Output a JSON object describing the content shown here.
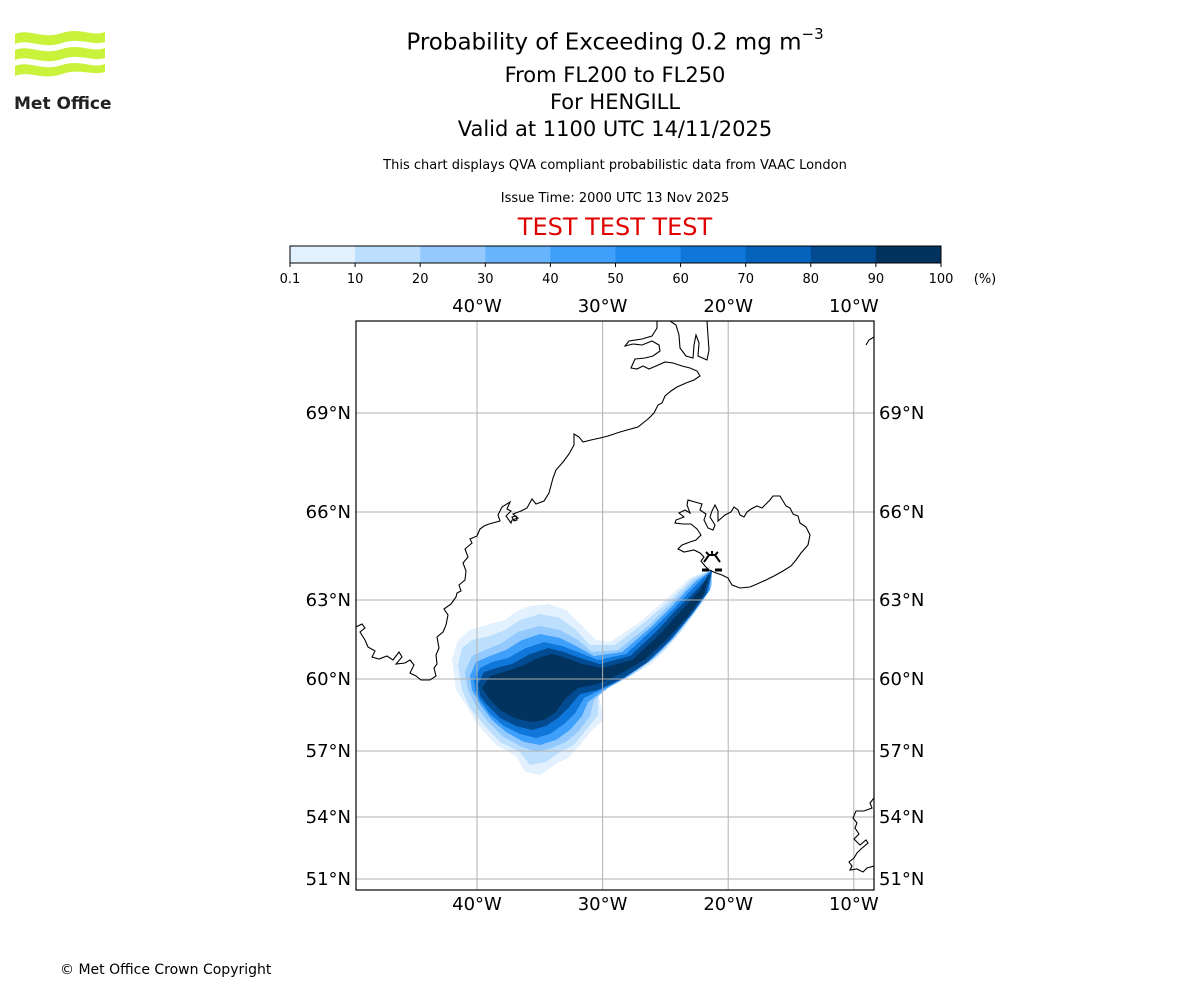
{
  "logo": {
    "text": "Met Office",
    "wave_color": "#c8f33a"
  },
  "header": {
    "title_main": "Probability of Exceeding 0.2 mg m",
    "title_superscript": "−3",
    "level_range": "From FL200 to FL250",
    "volcano_line": "For HENGILL",
    "valid_time": "Valid at 1100 UTC 14/11/2025",
    "subtitle": "This chart displays QVA compliant probabilistic data from VAAC London",
    "issue_time": "Issue Time: 2000 UTC 13 Nov 2025",
    "test_banner": "TEST TEST TEST",
    "test_banner_color": "#e00000"
  },
  "colorbar": {
    "unit_label": "(%)",
    "ticks": [
      "0.1",
      "10",
      "20",
      "30",
      "40",
      "50",
      "60",
      "70",
      "80",
      "90",
      "100"
    ],
    "colors": [
      "#e3f1fe",
      "#bbdffd",
      "#93c9fd",
      "#69b5fd",
      "#3fa0fc",
      "#218cf1",
      "#0f77d9",
      "#0563bc",
      "#034b90",
      "#02335f"
    ]
  },
  "map": {
    "lon_ticks_top": [
      "40°W",
      "30°W",
      "20°W",
      "10°W"
    ],
    "lon_ticks_bottom": [
      "40°W",
      "30°W",
      "20°W",
      "10°W"
    ],
    "lat_ticks_left": [
      "69°N",
      "66°N",
      "63°N",
      "60°N",
      "57°N",
      "54°N",
      "51°N"
    ],
    "lat_ticks_right": [
      "69°N",
      "66°N",
      "63°N",
      "60°N",
      "57°N",
      "54°N",
      "51°N"
    ],
    "volcano_name": "HENGILL",
    "volcano_icon": "volcano-icon"
  },
  "chart_data": {
    "type": "heatmap",
    "title": "Probability of Exceeding 0.2 mg m−3",
    "subtitle": "From FL200 to FL250 — For HENGILL — Valid at 1100 UTC 14/11/2025",
    "variable": "probability of exceeding 0.2 mg/m3 ash concentration",
    "units": "%",
    "colorbar_bounds": [
      0.1,
      10,
      20,
      30,
      40,
      50,
      60,
      70,
      80,
      90,
      100
    ],
    "lon_range": [
      -49.6,
      -8.3
    ],
    "lat_range": [
      50.6,
      71.5
    ],
    "lon_ticks": [
      -40,
      -30,
      -20,
      -10
    ],
    "lat_ticks": [
      69,
      66,
      63,
      60,
      57,
      54,
      51
    ],
    "grid": true,
    "source_location": {
      "name": "HENGILL",
      "lon": -21.3,
      "lat": 64.1
    },
    "plume_bands": [
      {
        "min_pct": 0.1,
        "extent": "approx 46.5°W–20.5°W, 56.5°N–64.5°N, plume from Hengill SW to centre near 36°W 59.5°N"
      },
      {
        "min_pct": 30,
        "extent": "approx 45.5°W–21°W, 57.3°N–64.2°N"
      },
      {
        "min_pct": 90,
        "extent": "core approx 44.5°W–21.3°W, 58°N–64°N; main blob 44°W–32°W, 58°N–61°N, narrow band NE to Hengill"
      }
    ]
  },
  "footer": {
    "copyright": "© Met Office Crown Copyright"
  }
}
